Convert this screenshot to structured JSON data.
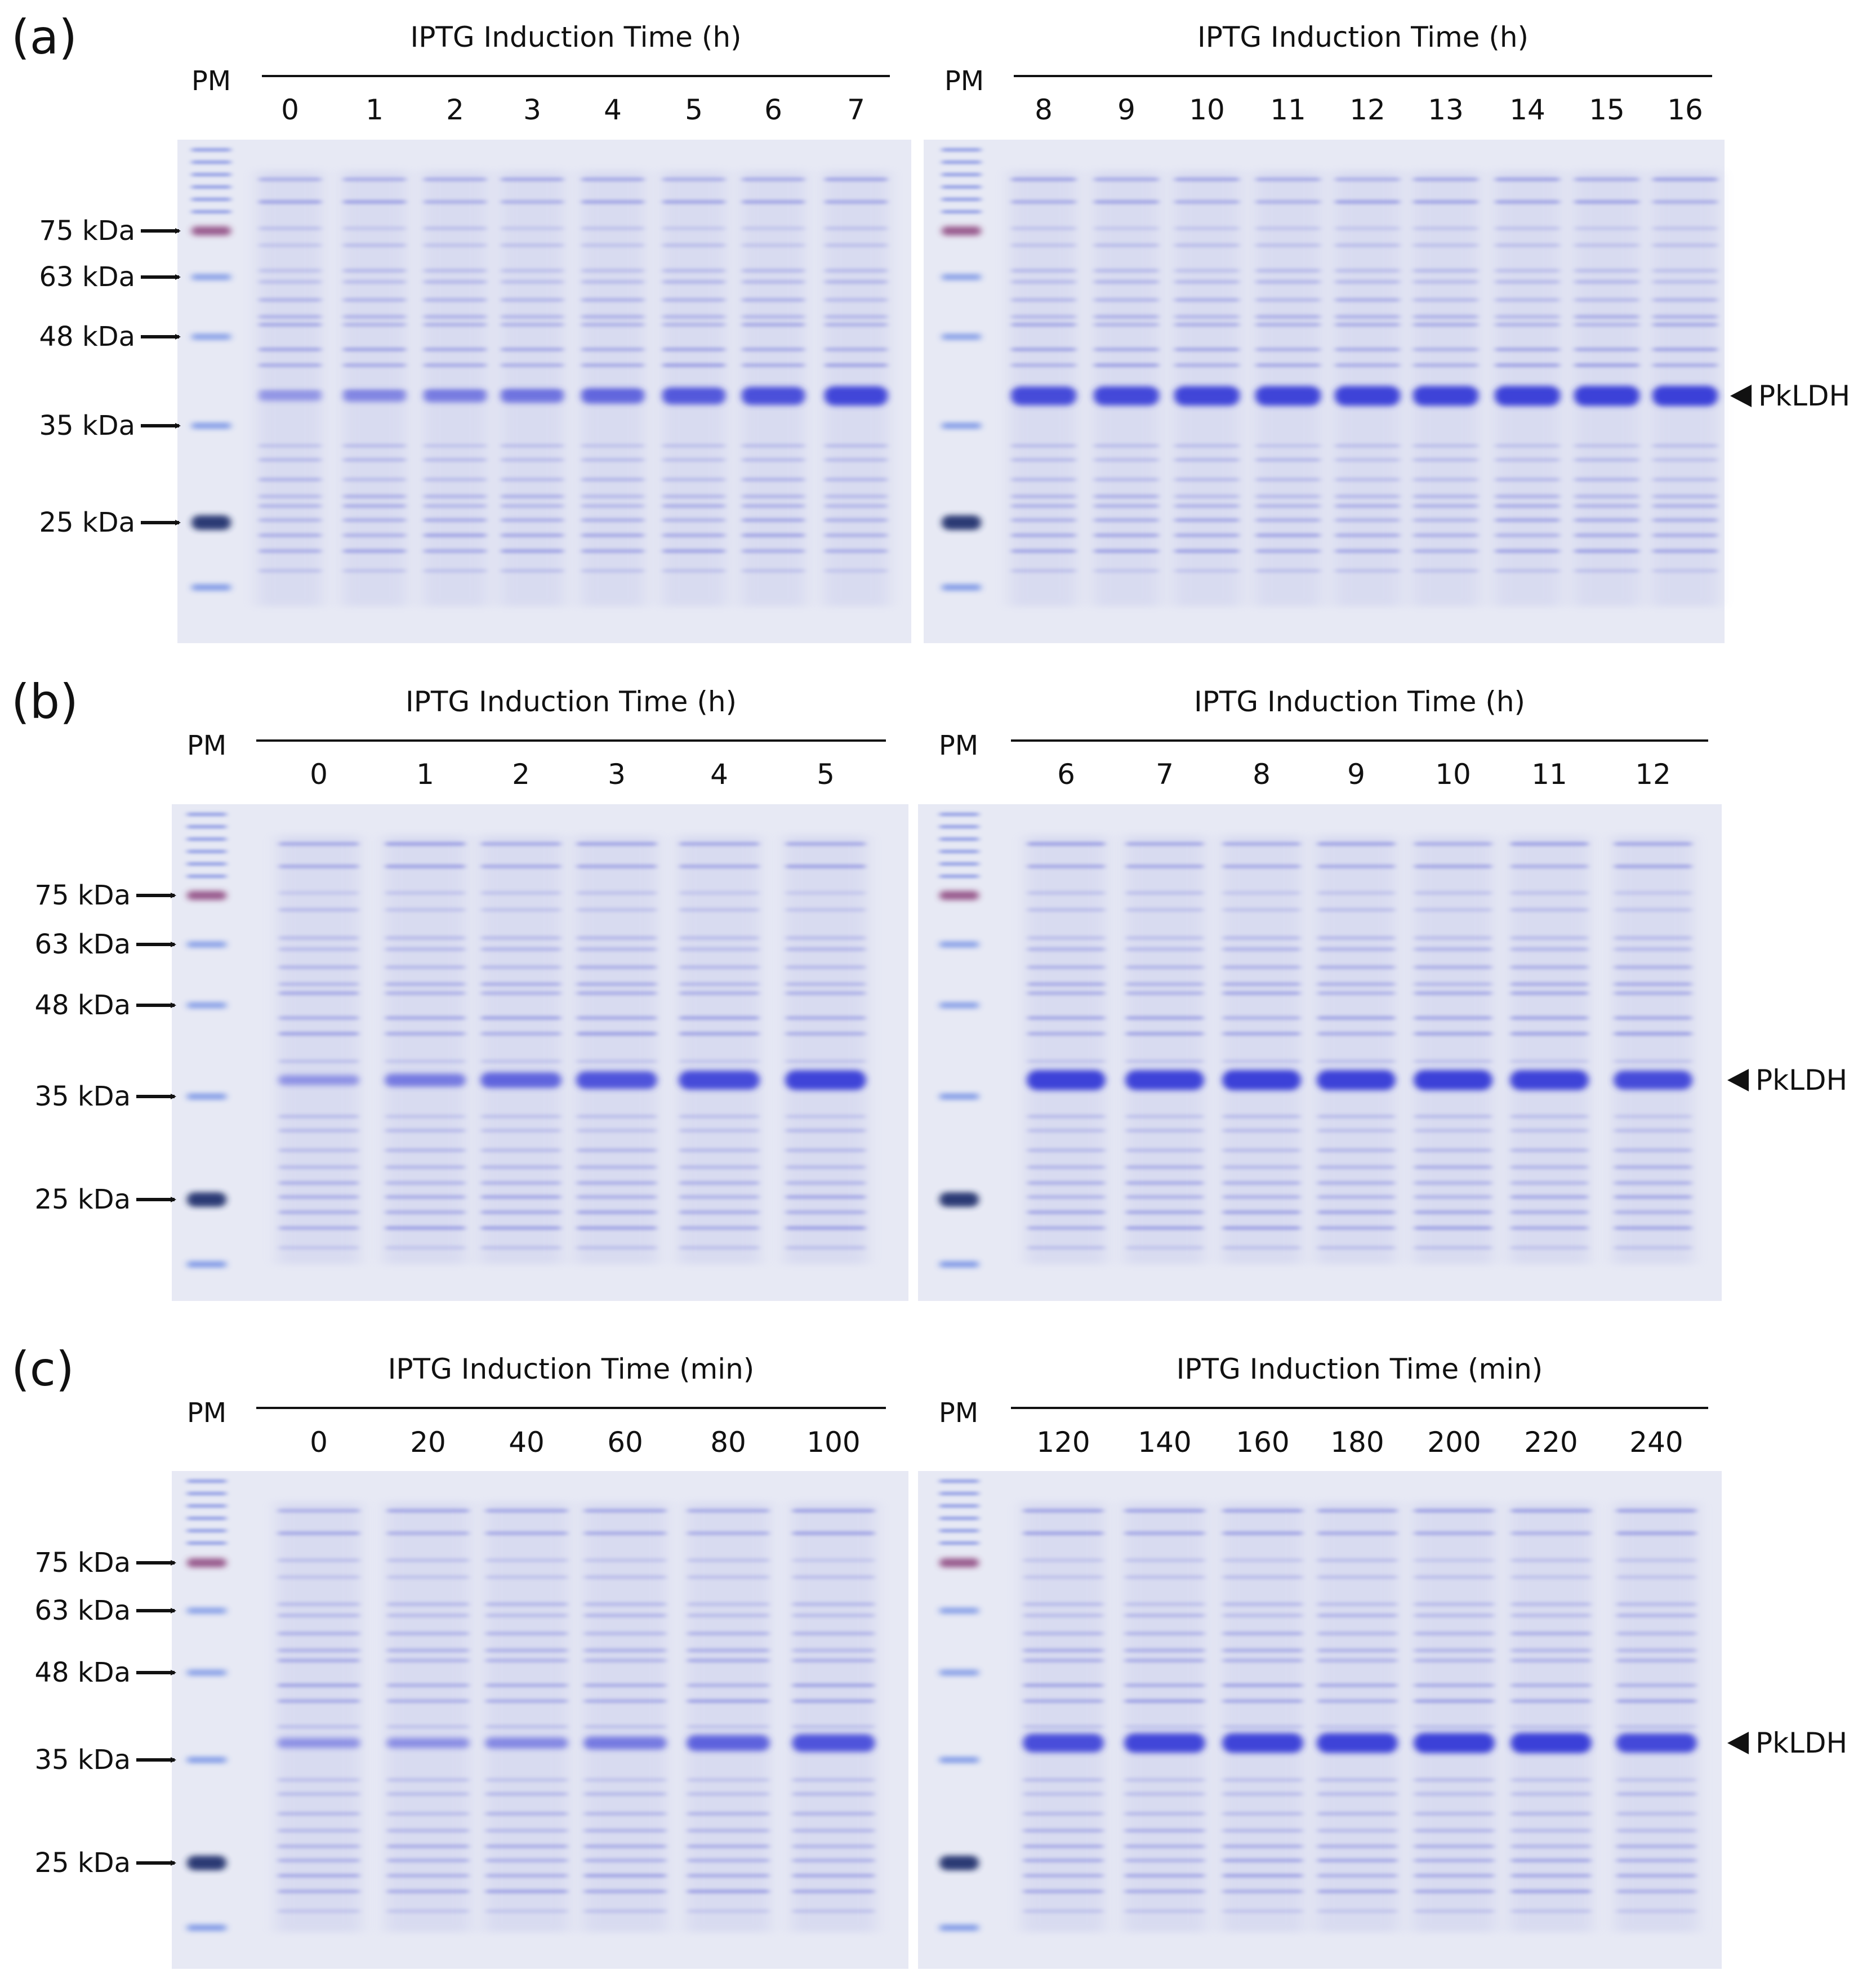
{
  "panels": [
    {
      "letter": "(a)",
      "left": {
        "pm_label": "PM",
        "axis_title": "IPTG Induction Time (h)",
        "lanes": [
          "0",
          "1",
          "2",
          "3",
          "4",
          "5",
          "6",
          "7"
        ],
        "band_intensity": [
          0.28,
          0.4,
          0.48,
          0.55,
          0.66,
          0.78,
          0.86,
          0.94
        ]
      },
      "right": {
        "pm_label": "PM",
        "axis_title": "IPTG Induction Time (h)",
        "lanes": [
          "8",
          "9",
          "10",
          "11",
          "12",
          "13",
          "14",
          "15",
          "16"
        ],
        "band_intensity": [
          0.9,
          0.92,
          0.95,
          0.96,
          0.97,
          0.97,
          0.98,
          0.99,
          1.0
        ]
      },
      "markers": [
        "75 kDa",
        "63 kDa",
        "48 kDa",
        "35 kDa",
        "25 kDa"
      ],
      "target_label": "PkLDH"
    },
    {
      "letter": "(b)",
      "left": {
        "pm_label": "PM",
        "axis_title": "IPTG Induction Time (h)",
        "lanes": [
          "0",
          "1",
          "2",
          "3",
          "4",
          "5"
        ],
        "band_intensity": [
          0.3,
          0.5,
          0.68,
          0.82,
          0.9,
          0.96
        ]
      },
      "right": {
        "pm_label": "PM",
        "axis_title": "IPTG Induction Time (h)",
        "lanes": [
          "6",
          "7",
          "8",
          "9",
          "10",
          "11",
          "12"
        ],
        "band_intensity": [
          0.98,
          0.97,
          0.99,
          0.98,
          0.99,
          0.97,
          0.9
        ]
      },
      "markers": [
        "75 kDa",
        "63 kDa",
        "48 kDa",
        "35 kDa",
        "25 kDa"
      ],
      "target_label": "PkLDH"
    },
    {
      "letter": "(c)",
      "left": {
        "pm_label": "PM",
        "axis_title": "IPTG Induction Time (min)",
        "lanes": [
          "0",
          "20",
          "40",
          "60",
          "80",
          "100"
        ],
        "band_intensity": [
          0.3,
          0.32,
          0.38,
          0.5,
          0.7,
          0.82
        ]
      },
      "right": {
        "pm_label": "PM",
        "axis_title": "IPTG Induction Time (min)",
        "lanes": [
          "120",
          "140",
          "160",
          "180",
          "200",
          "220",
          "240"
        ],
        "band_intensity": [
          0.88,
          0.94,
          0.96,
          0.97,
          0.99,
          1.0,
          0.92
        ]
      },
      "markers": [
        "75 kDa",
        "63 kDa",
        "48 kDa",
        "35 kDa",
        "25 kDa"
      ],
      "target_label": "PkLDH"
    }
  ],
  "colors": {
    "gel_background": "#ecedf6",
    "stain": "#3b3fd8",
    "marker_75": "#8a3f7a",
    "marker_25": "#24306e",
    "text": "#111111"
  }
}
